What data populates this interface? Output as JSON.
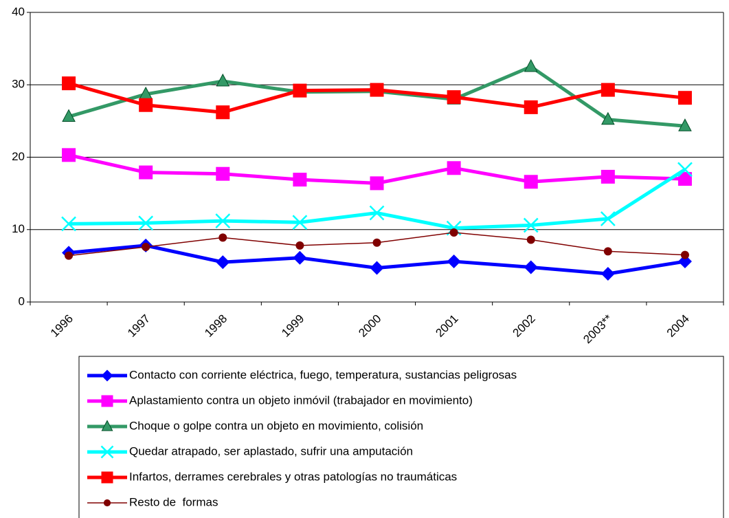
{
  "chart_data": {
    "type": "line",
    "categories": [
      "1996",
      "1997",
      "1998",
      "1999",
      "2000",
      "2001",
      "2002",
      "2003**",
      "2004"
    ],
    "ylim": [
      0,
      40
    ],
    "yticks": [
      0,
      10,
      20,
      30,
      40
    ],
    "grid": true,
    "legend": "bottom",
    "series": [
      {
        "name": "Contacto con corriente eléctrica, fuego, temperatura, sustancias peligrosas",
        "color": "#0000ff",
        "marker": "diamond",
        "line_width": 5,
        "values": [
          6.8,
          7.8,
          5.5,
          6.1,
          4.7,
          5.6,
          4.8,
          3.9,
          5.6
        ]
      },
      {
        "name": "Aplastamiento contra un objeto inmóvil (trabajador en movimiento)",
        "color": "#ff00ff",
        "marker": "square",
        "line_width": 5,
        "values": [
          20.3,
          17.9,
          17.7,
          16.9,
          16.4,
          18.5,
          16.6,
          17.3,
          17.0
        ]
      },
      {
        "name": "Choque o golpe contra un objeto en movimiento, colisión",
        "color": "#339966",
        "marker": "triangle",
        "line_width": 5,
        "values": [
          25.6,
          28.7,
          30.5,
          29.0,
          29.1,
          28.0,
          32.5,
          25.2,
          24.3
        ]
      },
      {
        "name": "Quedar atrapado, ser aplastado, sufrir una amputación",
        "color": "#00ffff",
        "marker": "cross",
        "line_width": 5,
        "values": [
          10.8,
          10.9,
          11.2,
          11.0,
          12.3,
          10.2,
          10.6,
          11.5,
          18.3
        ]
      },
      {
        "name": "Infartos, derrames cerebrales y otras patologías no traumáticas",
        "color": "#ff0000",
        "marker": "square",
        "line_width": 5,
        "values": [
          30.2,
          27.2,
          26.2,
          29.2,
          29.3,
          28.3,
          26.9,
          29.3,
          28.2
        ]
      },
      {
        "name": "Resto de  formas",
        "color": "#800000",
        "marker": "circle",
        "line_width": 1.5,
        "values": [
          6.4,
          7.6,
          8.9,
          7.8,
          8.2,
          9.6,
          8.6,
          7.0,
          6.5
        ]
      }
    ]
  }
}
